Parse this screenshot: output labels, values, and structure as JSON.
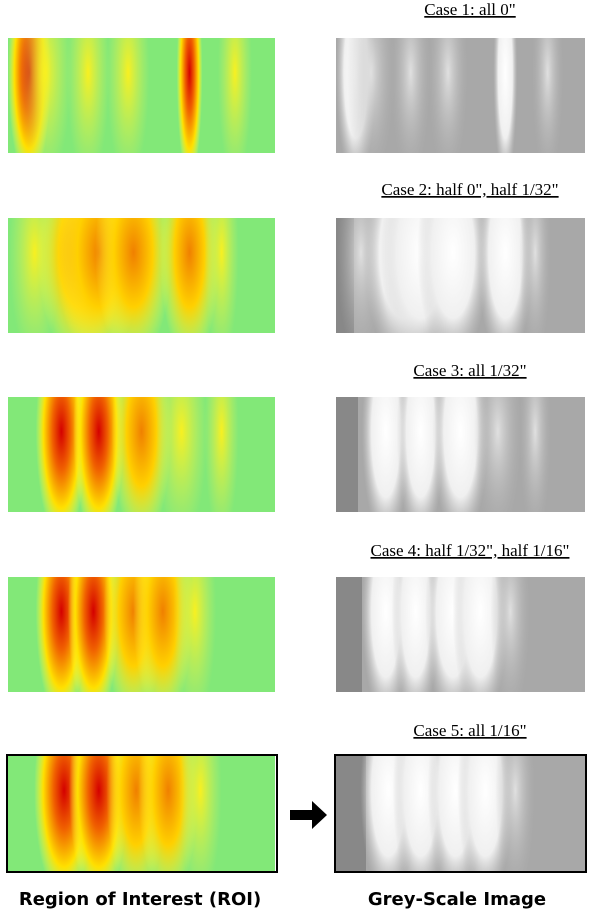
{
  "panels": [
    {
      "caption": "Case 1: all 0\""
    },
    {
      "caption": "Case 2: half 0\", half 1/32\""
    },
    {
      "caption": "Case 3: all 1/32\""
    },
    {
      "caption": "Case 4: half 1/32\", half 1/16\""
    },
    {
      "caption": "Case 5: all 1/16\""
    }
  ],
  "labels": {
    "roi": "Region of Interest (ROI)",
    "grey": "Grey-Scale Image"
  }
}
